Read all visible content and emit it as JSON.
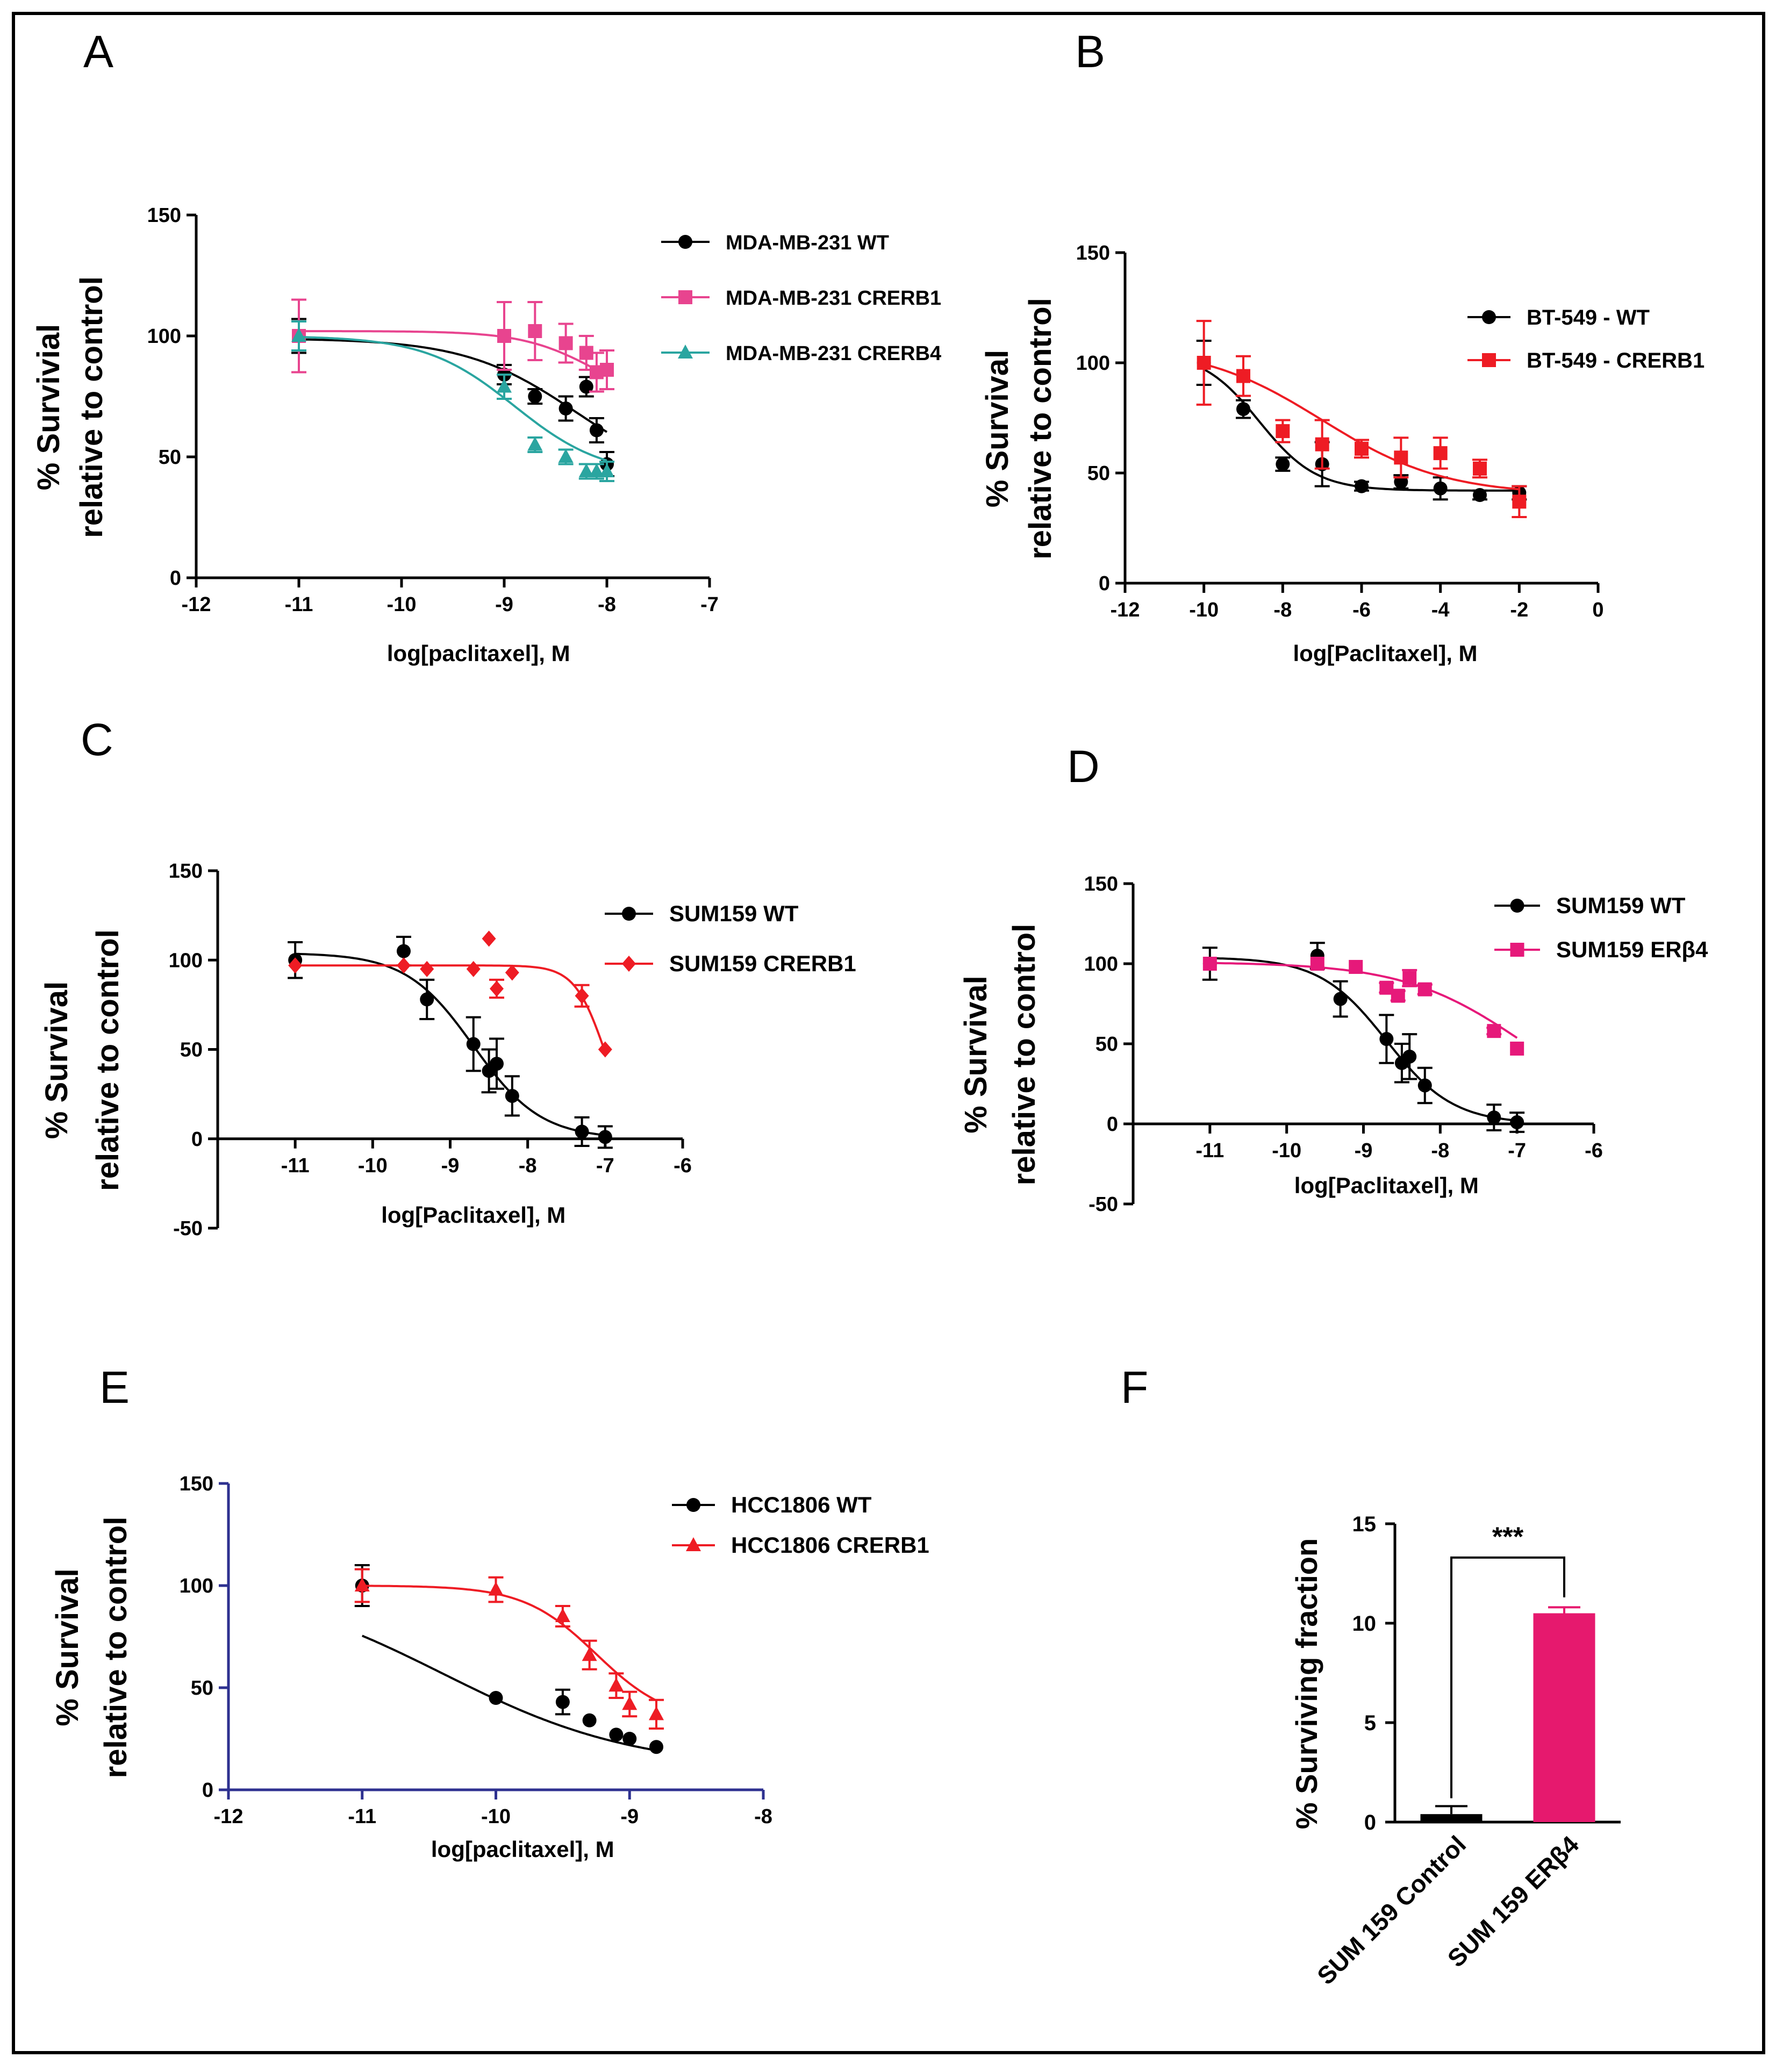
{
  "chart_data": [
    {
      "panel": "A",
      "type": "scatter",
      "xlabel": "log[paclitaxel], M",
      "ylabel": [
        "% Survivial",
        "relative to control"
      ],
      "xlim": [
        -12,
        -7
      ],
      "ylim": [
        0,
        150
      ],
      "xticks": [
        -12,
        -11,
        -10,
        -9,
        -8,
        -7
      ],
      "yticks": [
        0,
        50,
        100,
        150
      ],
      "series": [
        {
          "name": "MDA-MB-231 WT",
          "color": "#000000",
          "marker": "circle",
          "x": [
            -11,
            -9,
            -8.7,
            -8.4,
            -8.2,
            -8.1,
            -8
          ],
          "y": [
            100,
            84,
            75,
            70,
            79,
            61,
            47
          ],
          "err": [
            7,
            4,
            3,
            5,
            4,
            5,
            5
          ],
          "curve": {
            "top": 99,
            "bottom": 38,
            "logec50": -8.3,
            "hill": 0.8
          }
        },
        {
          "name": "MDA-MB-231 CRERB1",
          "color": "#e8448f",
          "marker": "square",
          "x": [
            -11,
            -9,
            -8.7,
            -8.4,
            -8.2,
            -8.1,
            -8
          ],
          "y": [
            100,
            100,
            102,
            97,
            93,
            85,
            86
          ],
          "err": [
            15,
            14,
            12,
            8,
            7,
            8,
            8
          ],
          "curve": {
            "top": 102,
            "bottom": 70,
            "logec50": -8.1,
            "hill": 1.2
          }
        },
        {
          "name": "MDA-MB-231 CRERB4",
          "color": "#2aa5a0",
          "marker": "triangle",
          "x": [
            -11,
            -9,
            -8.7,
            -8.4,
            -8.2,
            -8.1,
            -8
          ],
          "y": [
            100,
            79,
            55,
            50,
            44,
            44,
            44
          ],
          "err": [
            6,
            5,
            3,
            3,
            3,
            3,
            4
          ],
          "curve": {
            "top": 100,
            "bottom": 42,
            "logec50": -8.9,
            "hill": 1.0
          }
        }
      ]
    },
    {
      "panel": "B",
      "type": "scatter",
      "xlabel": "log[Paclitaxel], M",
      "ylabel": [
        "% Survival",
        "relative to control"
      ],
      "xlim": [
        -12,
        0
      ],
      "ylim": [
        0,
        150
      ],
      "xticks": [
        -12,
        -10,
        -8,
        -6,
        -4,
        -2,
        0
      ],
      "yticks": [
        0,
        50,
        100,
        150
      ],
      "series": [
        {
          "name": "BT-549 - WT",
          "color": "#000000",
          "marker": "circle",
          "x": [
            -10,
            -9,
            -8,
            -7,
            -6,
            -5,
            -4,
            -3,
            -2
          ],
          "y": [
            100,
            79,
            54,
            54,
            44,
            46,
            43,
            40,
            41
          ],
          "err": [
            10,
            4,
            3,
            10,
            2,
            3,
            5,
            2,
            3
          ],
          "curve": {
            "top": 105,
            "bottom": 42,
            "logec50": -8.6,
            "hill": 0.6
          }
        },
        {
          "name": "BT-549 - CRERB1",
          "color": "#ee1c24",
          "marker": "square",
          "x": [
            -10,
            -9,
            -8,
            -7,
            -6,
            -5,
            -4,
            -3,
            -2
          ],
          "y": [
            100,
            94,
            69,
            63,
            61,
            57,
            59,
            52,
            37
          ],
          "err": [
            19,
            9,
            5,
            11,
            4,
            9,
            7,
            4,
            7
          ],
          "curve": {
            "top": 108,
            "bottom": 40,
            "logec50": -7.0,
            "hill": 0.28
          }
        }
      ]
    },
    {
      "panel": "C",
      "type": "scatter",
      "xlabel": "log[Paclitaxel], M",
      "ylabel": [
        "% Survival",
        "relative to control"
      ],
      "xlim": [
        -12,
        -6
      ],
      "ylim": [
        -50,
        150
      ],
      "xticks": [
        -11,
        -10,
        -9,
        -8,
        -7,
        -6
      ],
      "yticks": [
        -50,
        0,
        50,
        100,
        150
      ],
      "series": [
        {
          "name": "SUM159 WT",
          "color": "#000000",
          "marker": "circle",
          "x": [
            -11,
            -9.6,
            -9.3,
            -8.7,
            -8.5,
            -8.4,
            -8.2,
            -7.3,
            -7
          ],
          "y": [
            100,
            105,
            78,
            53,
            38,
            42,
            24,
            4,
            1
          ],
          "err": [
            10,
            8,
            11,
            15,
            12,
            14,
            11,
            8,
            6
          ],
          "curve": {
            "top": 104,
            "bottom": 0,
            "logec50": -8.7,
            "hill": 1.0
          }
        },
        {
          "name": "SUM159 CRERB1",
          "color": "#ee1c24",
          "marker": "diamond",
          "x": [
            -11,
            -9.6,
            -9.3,
            -8.7,
            -8.5,
            -8.4,
            -8.2,
            -7.3,
            -7
          ],
          "y": [
            97,
            97,
            95,
            95,
            112,
            84,
            93,
            80,
            50
          ],
          "err": [
            0,
            0,
            0,
            0,
            0,
            5,
            0,
            6,
            0
          ],
          "curve": {
            "top": 97,
            "bottom": 0,
            "logec50": -7.0,
            "hill": 2.2
          }
        }
      ]
    },
    {
      "panel": "D",
      "type": "scatter",
      "xlabel": "log[Paclitaxel], M",
      "ylabel": [
        "% Survival",
        "relative to control"
      ],
      "xlim": [
        -12,
        -6
      ],
      "ylim": [
        -50,
        150
      ],
      "xticks": [
        -11,
        -10,
        -9,
        -8,
        -7,
        -6
      ],
      "yticks": [
        -50,
        0,
        50,
        100,
        150
      ],
      "series": [
        {
          "name": "SUM159 WT",
          "color": "#000000",
          "marker": "circle",
          "x": [
            -11,
            -9.6,
            -9.3,
            -8.7,
            -8.5,
            -8.4,
            -8.2,
            -7.3,
            -7
          ],
          "y": [
            100,
            105,
            78,
            53,
            38,
            42,
            24,
            4,
            1
          ],
          "err": [
            10,
            8,
            11,
            15,
            12,
            14,
            11,
            8,
            6
          ],
          "curve": {
            "top": 104,
            "bottom": 0,
            "logec50": -8.7,
            "hill": 1.0
          }
        },
        {
          "name": "SUM159 ERβ4",
          "color": "#e6197a",
          "marker": "square",
          "x": [
            -11,
            -9.6,
            -9.1,
            -8.7,
            -8.55,
            -8.4,
            -8.2,
            -7.3,
            -7
          ],
          "y": [
            100,
            100,
            98,
            85,
            80,
            91,
            84,
            58,
            47
          ],
          "err": [
            0,
            0,
            0,
            3,
            3,
            5,
            3,
            2,
            0
          ],
          "curve": {
            "top": 101,
            "bottom": 0,
            "logec50": -6.9,
            "hill": 0.55
          }
        }
      ]
    },
    {
      "panel": "E",
      "type": "scatter",
      "xlabel": "log[paclitaxel], M",
      "ylabel": [
        "% Survival",
        "relative to control"
      ],
      "xlim": [
        -12,
        -8
      ],
      "ylim": [
        0,
        150
      ],
      "xticks": [
        -12,
        -11,
        -10,
        -9,
        -8
      ],
      "yticks": [
        0,
        50,
        100,
        150
      ],
      "series": [
        {
          "name": "HCC1806 WT",
          "color": "#000000",
          "marker": "circle",
          "x": [
            -11,
            -10,
            -9.5,
            -9.3,
            -9.1,
            -9,
            -8.8
          ],
          "y": [
            100,
            45,
            43,
            34,
            27,
            25,
            21
          ],
          "err": [
            10,
            0,
            6,
            0,
            0,
            0,
            0
          ],
          "curve": {
            "top": 104,
            "bottom": 10,
            "logec50": -10.4,
            "hill": 0.6
          }
        },
        {
          "name": "HCC1806 CRERB1",
          "color": "#ee1c24",
          "marker": "triangle",
          "x": [
            -11,
            -10,
            -9.5,
            -9.3,
            -9.1,
            -9,
            -8.8
          ],
          "y": [
            100,
            98,
            85,
            66,
            51,
            42,
            37
          ],
          "err": [
            8,
            6,
            5,
            7,
            6,
            6,
            7
          ],
          "curve": {
            "top": 100,
            "bottom": 33,
            "logec50": -9.25,
            "hill": 1.6
          }
        }
      ]
    },
    {
      "panel": "F",
      "type": "bar",
      "ylabel": "% Surviving fraction",
      "ylim": [
        0,
        15
      ],
      "yticks": [
        0,
        5,
        10,
        15
      ],
      "categories": [
        "SUM 159 Control",
        "SUM 159 ERβ4"
      ],
      "values": [
        0.4,
        10.5
      ],
      "errors": [
        0.4,
        0.3
      ],
      "colors": [
        "#000000",
        "#e6196e"
      ],
      "significance": "***"
    }
  ]
}
